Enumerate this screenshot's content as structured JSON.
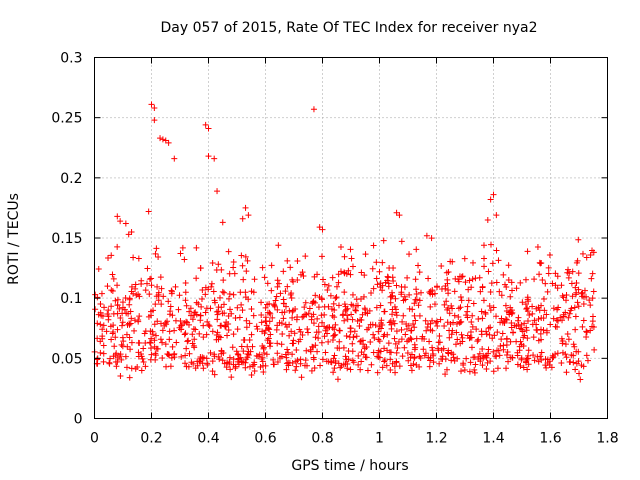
{
  "chart_data": {
    "type": "scatter",
    "title": "Day 057 of 2015, Rate Of TEC Index for receiver nya2",
    "xlabel": "GPS time / hours",
    "ylabel": "ROTI / TECUs",
    "xlim": [
      0,
      1.8
    ],
    "ylim": [
      0,
      0.3
    ],
    "x_ticks": [
      0,
      0.2,
      0.4,
      0.6,
      0.8,
      1,
      1.2,
      1.4,
      1.6,
      1.8
    ],
    "x_tick_labels": [
      "0",
      "0.2",
      "0.4",
      "0.6",
      "0.8",
      "1",
      "1.2",
      "1.4",
      "1.6",
      "1.8"
    ],
    "y_ticks": [
      0,
      0.05,
      0.1,
      0.15,
      0.2,
      0.25,
      0.3
    ],
    "y_tick_labels": [
      "0",
      "0.05",
      "0.1",
      "0.15",
      "0.2",
      "0.25",
      "0.3"
    ],
    "grid": true,
    "marker": "+",
    "series": [
      {
        "name": "ROTI",
        "color": "#ff0000",
        "x_start": 0.0,
        "x_end": 1.76,
        "n_points": 1400,
        "seed": 57,
        "bands": [
          {
            "mean": 0.078,
            "spread": 0.025,
            "weight": 0.45
          },
          {
            "mean": 0.05,
            "spread": 0.014,
            "weight": 0.3
          },
          {
            "mean": 0.105,
            "spread": 0.02,
            "weight": 0.17
          },
          {
            "mean": 0.128,
            "spread": 0.02,
            "weight": 0.08
          }
        ],
        "min_value": 0.016,
        "max_value": 0.152,
        "outliers": [
          {
            "x": 0.2,
            "y": 0.261
          },
          {
            "x": 0.21,
            "y": 0.258
          },
          {
            "x": 0.21,
            "y": 0.248
          },
          {
            "x": 0.23,
            "y": 0.233
          },
          {
            "x": 0.24,
            "y": 0.232
          },
          {
            "x": 0.25,
            "y": 0.231
          },
          {
            "x": 0.26,
            "y": 0.229
          },
          {
            "x": 0.28,
            "y": 0.216
          },
          {
            "x": 0.39,
            "y": 0.244
          },
          {
            "x": 0.4,
            "y": 0.241
          },
          {
            "x": 0.4,
            "y": 0.218
          },
          {
            "x": 0.42,
            "y": 0.216
          },
          {
            "x": 0.43,
            "y": 0.189
          },
          {
            "x": 0.77,
            "y": 0.257
          },
          {
            "x": 0.19,
            "y": 0.172
          },
          {
            "x": 0.08,
            "y": 0.168
          },
          {
            "x": 0.09,
            "y": 0.164
          },
          {
            "x": 0.11,
            "y": 0.162
          },
          {
            "x": 0.53,
            "y": 0.175
          },
          {
            "x": 0.54,
            "y": 0.169
          },
          {
            "x": 0.52,
            "y": 0.166
          },
          {
            "x": 0.45,
            "y": 0.163
          },
          {
            "x": 1.06,
            "y": 0.171
          },
          {
            "x": 1.07,
            "y": 0.169
          },
          {
            "x": 1.4,
            "y": 0.186
          },
          {
            "x": 1.39,
            "y": 0.182
          },
          {
            "x": 1.41,
            "y": 0.169
          },
          {
            "x": 1.38,
            "y": 0.165
          },
          {
            "x": 0.79,
            "y": 0.159
          },
          {
            "x": 0.8,
            "y": 0.157
          },
          {
            "x": 0.13,
            "y": 0.155
          },
          {
            "x": 0.12,
            "y": 0.153
          }
        ]
      }
    ]
  }
}
